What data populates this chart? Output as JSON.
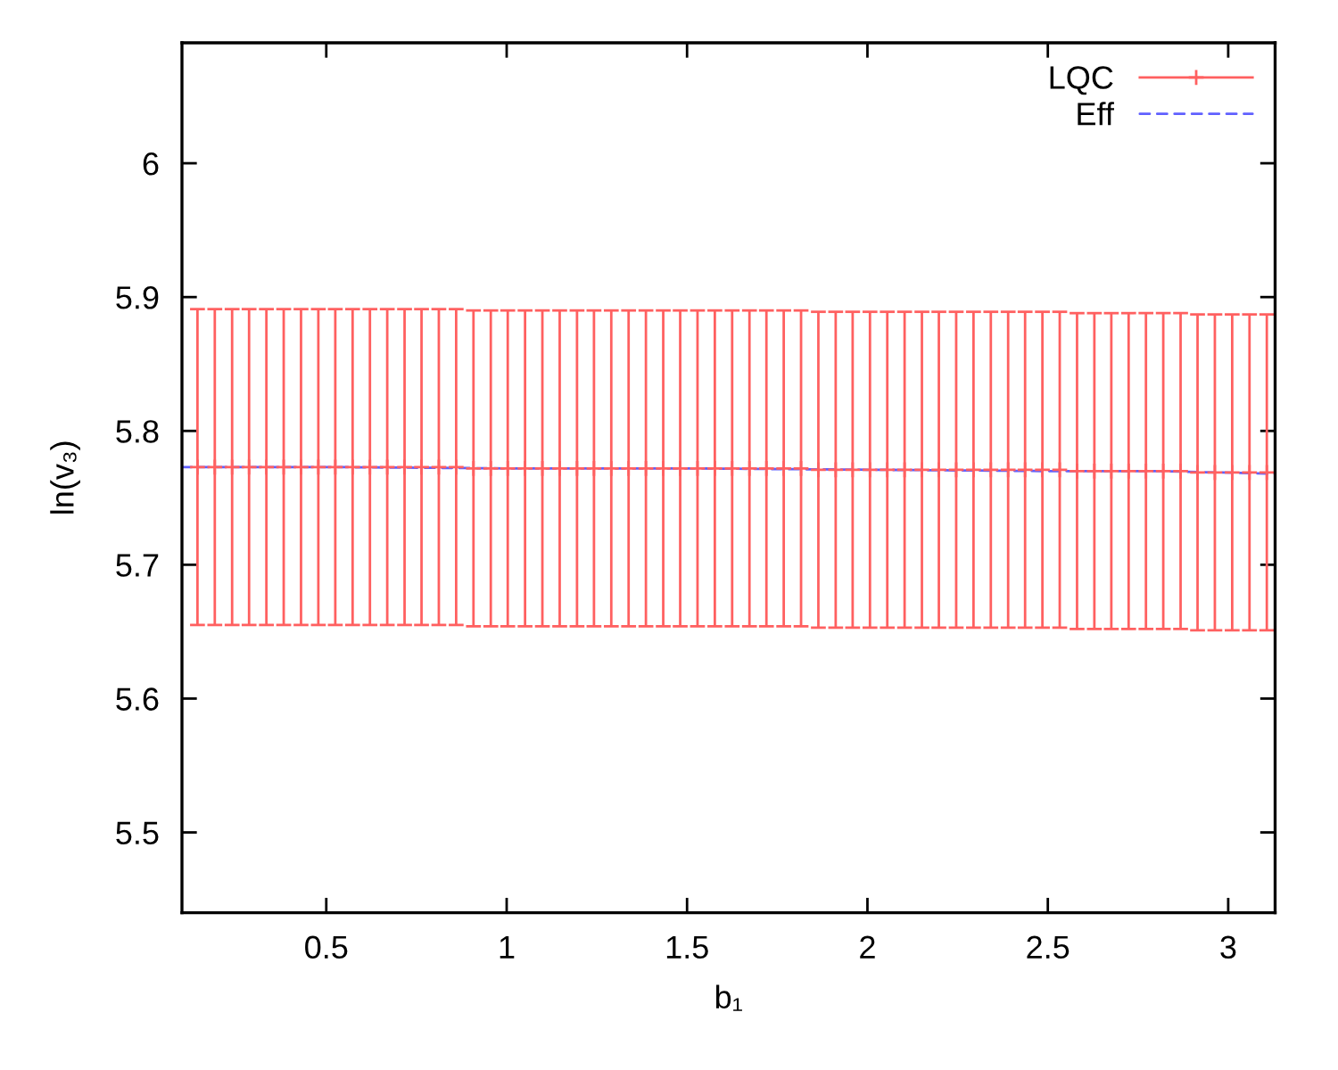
{
  "chart_data": {
    "type": "scatter",
    "xlabel": "b₁",
    "ylabel": "ln(v₃)",
    "xlim": [
      0.1,
      3.13
    ],
    "ylim": [
      5.44,
      6.09
    ],
    "xticks": [
      0.5,
      1,
      1.5,
      2,
      2.5,
      3
    ],
    "yticks": [
      5.5,
      5.6,
      5.7,
      5.8,
      5.9,
      6
    ],
    "legend": "top right",
    "series": [
      {
        "name": "LQC",
        "color": "#ff6060",
        "marker": "cross",
        "x": [
          0.143,
          0.191,
          0.239,
          0.286,
          0.334,
          0.382,
          0.43,
          0.478,
          0.525,
          0.573,
          0.621,
          0.669,
          0.717,
          0.764,
          0.812,
          0.86,
          0.908,
          0.956,
          1.003,
          1.051,
          1.099,
          1.147,
          1.195,
          1.242,
          1.29,
          1.338,
          1.386,
          1.434,
          1.481,
          1.529,
          1.577,
          1.625,
          1.673,
          1.72,
          1.768,
          1.816,
          1.864,
          1.912,
          1.959,
          2.007,
          2.055,
          2.103,
          2.151,
          2.198,
          2.246,
          2.294,
          2.342,
          2.39,
          2.437,
          2.485,
          2.533,
          2.581,
          2.629,
          2.676,
          2.724,
          2.772,
          2.82,
          2.868,
          2.915,
          2.963,
          3.011,
          3.059,
          3.107
        ],
        "values": [
          5.773,
          5.773,
          5.773,
          5.773,
          5.773,
          5.773,
          5.773,
          5.773,
          5.773,
          5.773,
          5.773,
          5.773,
          5.773,
          5.773,
          5.773,
          5.773,
          5.772,
          5.772,
          5.772,
          5.772,
          5.772,
          5.772,
          5.772,
          5.772,
          5.772,
          5.772,
          5.772,
          5.772,
          5.772,
          5.772,
          5.772,
          5.772,
          5.772,
          5.772,
          5.772,
          5.772,
          5.771,
          5.771,
          5.771,
          5.771,
          5.771,
          5.771,
          5.771,
          5.771,
          5.771,
          5.771,
          5.771,
          5.771,
          5.771,
          5.771,
          5.771,
          5.77,
          5.77,
          5.77,
          5.77,
          5.77,
          5.77,
          5.77,
          5.769,
          5.769,
          5.769,
          5.769,
          5.769
        ],
        "errors": [
          0.118,
          0.118,
          0.118,
          0.118,
          0.118,
          0.118,
          0.118,
          0.118,
          0.118,
          0.118,
          0.118,
          0.118,
          0.118,
          0.118,
          0.118,
          0.118,
          0.118,
          0.118,
          0.118,
          0.118,
          0.118,
          0.118,
          0.118,
          0.118,
          0.118,
          0.118,
          0.118,
          0.118,
          0.118,
          0.118,
          0.118,
          0.118,
          0.118,
          0.118,
          0.118,
          0.118,
          0.118,
          0.118,
          0.118,
          0.118,
          0.118,
          0.118,
          0.118,
          0.118,
          0.118,
          0.118,
          0.118,
          0.118,
          0.118,
          0.118,
          0.118,
          0.118,
          0.118,
          0.118,
          0.118,
          0.118,
          0.118,
          0.118,
          0.118,
          0.118,
          0.118,
          0.118,
          0.118
        ]
      },
      {
        "name": "Eff",
        "type": "line",
        "color": "#6060ff",
        "line_style": "dashed",
        "x": [
          0.1,
          0.5,
          1,
          1.5,
          2,
          2.5,
          2.8,
          3.13
        ],
        "values": [
          5.773,
          5.773,
          5.772,
          5.772,
          5.771,
          5.77,
          5.77,
          5.768
        ]
      }
    ]
  }
}
